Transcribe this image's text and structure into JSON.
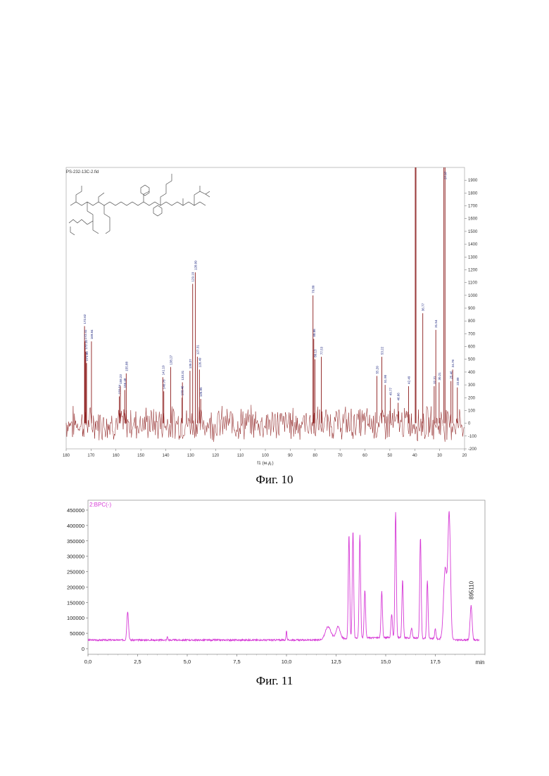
{
  "figure10": {
    "caption": "Фиг. 10",
    "file_label": "PS-232-13C-2.fid",
    "chart_data": {
      "type": "line",
      "xlabel": "f1 (м.д.)",
      "xlim": [
        180,
        20
      ],
      "ylim": [
        -200,
        2000
      ],
      "x_ticks": [
        "180",
        "170",
        "160",
        "150",
        "140",
        "130",
        "120",
        "110",
        "100",
        "90",
        "80",
        "70",
        "60",
        "50",
        "40",
        "30",
        "20"
      ],
      "y_ticks": [
        "-200",
        "-100",
        "0",
        "100",
        "200",
        "300",
        "400",
        "500",
        "600",
        "700",
        "800",
        "900",
        "1000",
        "1100",
        "1200",
        "1300",
        "1400",
        "1500",
        "1600",
        "1700",
        "1800",
        "1900"
      ],
      "color": "#8b1a1a",
      "peaks": [
        {
          "x": 172.62,
          "y": 760,
          "label": "172.62"
        },
        {
          "x": 172.4,
          "y": 640,
          "label": "172.41"
        },
        {
          "x": 172.1,
          "y": 560,
          "label": "172.10"
        },
        {
          "x": 171.8,
          "y": 470,
          "label": "171.80"
        },
        {
          "x": 169.84,
          "y": 640,
          "label": "169.84"
        },
        {
          "x": 158.64,
          "y": 210,
          "label": "158.64"
        },
        {
          "x": 158.23,
          "y": 290,
          "label": "158.23"
        },
        {
          "x": 156.48,
          "y": 260,
          "label": "156.48"
        },
        {
          "x": 155.88,
          "y": 390,
          "label": "155.88"
        },
        {
          "x": 140.78,
          "y": 250,
          "label": "140.78"
        },
        {
          "x": 141.19,
          "y": 360,
          "label": "141.19"
        },
        {
          "x": 138.0,
          "y": 440,
          "label": "138.27"
        },
        {
          "x": 133.31,
          "y": 320,
          "label": "133.31"
        },
        {
          "x": 133.46,
          "y": 200,
          "label": "133.46"
        },
        {
          "x": 130.27,
          "y": 410,
          "label": "130.27"
        },
        {
          "x": 129.19,
          "y": 1090,
          "label": "129.19"
        },
        {
          "x": 128.09,
          "y": 1180,
          "label": "128.09"
        },
        {
          "x": 127.31,
          "y": 520,
          "label": "127.31"
        },
        {
          "x": 126.49,
          "y": 420,
          "label": "126.49"
        },
        {
          "x": 125.95,
          "y": 190,
          "label": "125.95"
        },
        {
          "x": 80.86,
          "y": 1000,
          "label": "79.80"
        },
        {
          "x": 80.55,
          "y": 660,
          "label": "80.86"
        },
        {
          "x": 80.1,
          "y": 500,
          "label": "80.13"
        },
        {
          "x": 77.53,
          "y": 520,
          "label": "77.53"
        },
        {
          "x": 55.2,
          "y": 370,
          "label": "55.20"
        },
        {
          "x": 53.22,
          "y": 520,
          "label": "53.22"
        },
        {
          "x": 51.9,
          "y": 300,
          "label": "51.90"
        },
        {
          "x": 49.77,
          "y": 200,
          "label": "49.77"
        },
        {
          "x": 46.66,
          "y": 160,
          "label": "46.66"
        },
        {
          "x": 42.49,
          "y": 290,
          "label": "42.49"
        },
        {
          "x": 39.8,
          "y": 2000,
          "label": ""
        },
        {
          "x": 39.5,
          "y": 2000,
          "label": ""
        },
        {
          "x": 36.77,
          "y": 860,
          "label": "36.77"
        },
        {
          "x": 32.2,
          "y": 290,
          "label": "32.31"
        },
        {
          "x": 31.54,
          "y": 730,
          "label": "31.54"
        },
        {
          "x": 30.21,
          "y": 320,
          "label": "30.21"
        },
        {
          "x": 28.3,
          "y": 2000,
          "label": ""
        },
        {
          "x": 27.84,
          "y": 2000,
          "label": "27.97"
        },
        {
          "x": 25.46,
          "y": 330,
          "label": "25.46"
        },
        {
          "x": 24.76,
          "y": 420,
          "label": "24.76"
        },
        {
          "x": 22.89,
          "y": 280,
          "label": "22.89"
        }
      ]
    }
  },
  "figure11": {
    "caption": "Фиг. 11",
    "chart_data": {
      "type": "line",
      "legend": "2:BPC(-)",
      "xlabel": "min",
      "xlim": [
        0,
        20
      ],
      "ylim": [
        0,
        450000
      ],
      "x_ticks": [
        "0,0",
        "2,5",
        "5,0",
        "7,5",
        "10,0",
        "12,5",
        "15,0",
        "17,5"
      ],
      "y_ticks": [
        "0",
        "50000",
        "100000",
        "150000",
        "200000",
        "250000",
        "300000",
        "350000",
        "400000",
        "450000"
      ],
      "color": "#d63ad6",
      "baseline": 28000,
      "annotation": {
        "x": 19.3,
        "text": "895110"
      },
      "peaks": [
        {
          "x": 2.0,
          "y": 122000,
          "w": 0.06
        },
        {
          "x": 4.0,
          "y": 40000,
          "w": 0.03
        },
        {
          "x": 10.0,
          "y": 60000,
          "w": 0.03
        },
        {
          "x": 12.1,
          "y": 70000,
          "w": 0.2
        },
        {
          "x": 12.6,
          "y": 68000,
          "w": 0.15
        },
        {
          "x": 13.15,
          "y": 365000,
          "w": 0.05
        },
        {
          "x": 13.35,
          "y": 378000,
          "w": 0.05
        },
        {
          "x": 13.7,
          "y": 365000,
          "w": 0.05
        },
        {
          "x": 13.95,
          "y": 185000,
          "w": 0.05
        },
        {
          "x": 14.8,
          "y": 178000,
          "w": 0.05
        },
        {
          "x": 15.3,
          "y": 105000,
          "w": 0.05
        },
        {
          "x": 15.5,
          "y": 438000,
          "w": 0.05
        },
        {
          "x": 15.85,
          "y": 215000,
          "w": 0.05
        },
        {
          "x": 16.3,
          "y": 60000,
          "w": 0.05
        },
        {
          "x": 16.75,
          "y": 355000,
          "w": 0.05
        },
        {
          "x": 17.1,
          "y": 215000,
          "w": 0.05
        },
        {
          "x": 17.5,
          "y": 60000,
          "w": 0.05
        },
        {
          "x": 18.0,
          "y": 260000,
          "w": 0.12
        },
        {
          "x": 18.2,
          "y": 428000,
          "w": 0.09
        },
        {
          "x": 19.3,
          "y": 140000,
          "w": 0.07
        }
      ]
    }
  }
}
